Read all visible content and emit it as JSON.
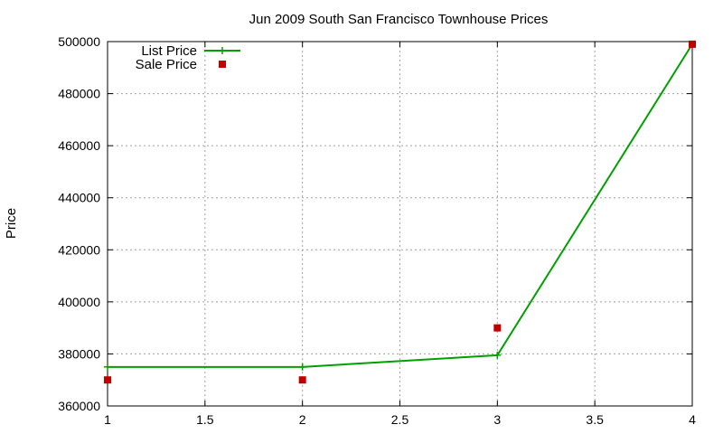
{
  "chart_data": {
    "type": "line",
    "title": "Jun 2009 South San Francisco Townhouse Prices",
    "xlabel": "",
    "ylabel": "Price",
    "xlim": [
      1,
      4
    ],
    "ylim": [
      360000,
      500000
    ],
    "x_ticks": [
      "1",
      "1.5",
      "2",
      "2.5",
      "3",
      "3.5",
      "4"
    ],
    "y_ticks": [
      "360000",
      "380000",
      "400000",
      "420000",
      "440000",
      "460000",
      "480000",
      "500000"
    ],
    "grid": true,
    "legend_position": "top-left",
    "series": [
      {
        "name": "List Price",
        "style": "line-with-points",
        "color": "#00a000",
        "x": [
          1,
          2,
          3,
          4
        ],
        "y": [
          375000,
          375000,
          379500,
          499000
        ]
      },
      {
        "name": "Sale Price",
        "style": "points",
        "color": "#c00000",
        "x": [
          1,
          2,
          3,
          4
        ],
        "y": [
          370000,
          370000,
          390000,
          499000
        ]
      }
    ]
  }
}
